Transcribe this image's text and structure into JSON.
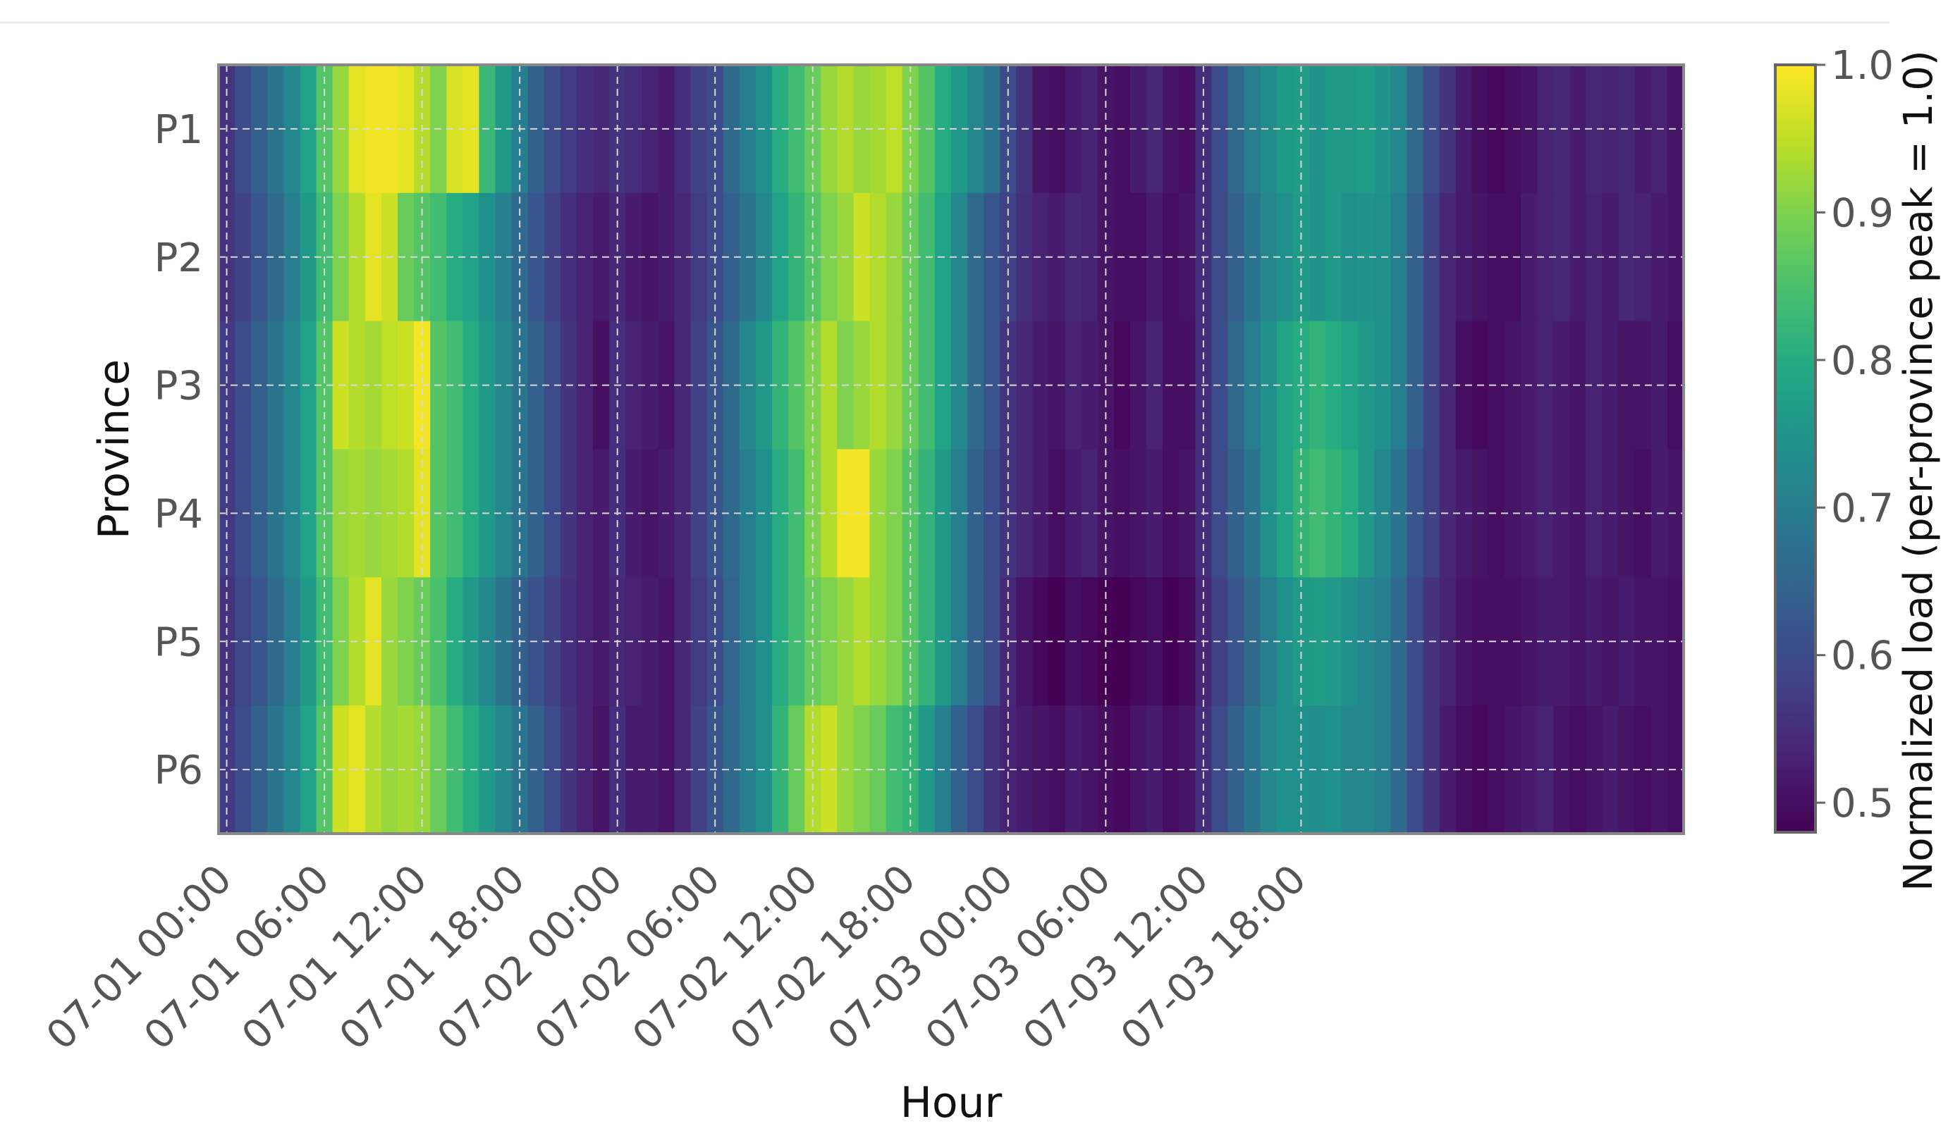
{
  "chart_data": {
    "type": "heatmap",
    "title": "",
    "xlabel": "Hour",
    "ylabel": "Province",
    "rows": [
      "P1",
      "P2",
      "P3",
      "P4",
      "P5",
      "P6"
    ],
    "x_start": "07-01 00:00",
    "x_step_hours": 1,
    "x_ticks": [
      "07-01 00:00",
      "07-01 06:00",
      "07-01 12:00",
      "07-01 18:00",
      "07-02 00:00",
      "07-02 06:00",
      "07-02 12:00",
      "07-02 18:00",
      "07-03 00:00",
      "07-03 06:00",
      "07-03 12:00",
      "07-03 18:00"
    ],
    "colorbar": {
      "label": "Normalized load (per-province peak = 1.0)",
      "range": [
        0.48,
        1.0
      ],
      "ticks": [
        "0.5",
        "0.6",
        "0.7",
        "0.8",
        "0.9",
        "1.0"
      ],
      "colormap": "viridis"
    },
    "grid": true,
    "values": [
      [
        0.56,
        0.6,
        0.64,
        0.68,
        0.72,
        0.78,
        0.86,
        0.92,
        0.98,
        0.99,
        0.99,
        0.98,
        0.94,
        0.9,
        0.97,
        0.98,
        0.83,
        0.76,
        0.7,
        0.64,
        0.6,
        0.57,
        0.55,
        0.54,
        0.56,
        0.55,
        0.53,
        0.52,
        0.55,
        0.58,
        0.6,
        0.66,
        0.7,
        0.74,
        0.8,
        0.84,
        0.88,
        0.92,
        0.94,
        0.92,
        0.93,
        0.95,
        0.9,
        0.86,
        0.8,
        0.76,
        0.72,
        0.68,
        0.6,
        0.56,
        0.51,
        0.5,
        0.52,
        0.53,
        0.51,
        0.5,
        0.52,
        0.54,
        0.51,
        0.5,
        0.55,
        0.6,
        0.66,
        0.7,
        0.73,
        0.76,
        0.77,
        0.75,
        0.76,
        0.76,
        0.77,
        0.75,
        0.72,
        0.66,
        0.6,
        0.56,
        0.52,
        0.5,
        0.49,
        0.5,
        0.51,
        0.53,
        0.54,
        0.52,
        0.54,
        0.53,
        0.54,
        0.52,
        0.53,
        0.51
      ],
      [
        0.56,
        0.58,
        0.62,
        0.66,
        0.7,
        0.76,
        0.84,
        0.9,
        0.94,
        0.98,
        0.96,
        0.88,
        0.86,
        0.84,
        0.8,
        0.78,
        0.74,
        0.7,
        0.66,
        0.62,
        0.58,
        0.55,
        0.53,
        0.52,
        0.54,
        0.52,
        0.51,
        0.52,
        0.54,
        0.57,
        0.6,
        0.64,
        0.68,
        0.72,
        0.78,
        0.82,
        0.86,
        0.9,
        0.92,
        0.96,
        0.94,
        0.92,
        0.88,
        0.84,
        0.78,
        0.72,
        0.66,
        0.62,
        0.58,
        0.55,
        0.53,
        0.52,
        0.54,
        0.53,
        0.51,
        0.5,
        0.5,
        0.52,
        0.5,
        0.51,
        0.55,
        0.6,
        0.64,
        0.68,
        0.72,
        0.74,
        0.76,
        0.75,
        0.76,
        0.74,
        0.75,
        0.74,
        0.7,
        0.64,
        0.58,
        0.54,
        0.52,
        0.51,
        0.5,
        0.5,
        0.52,
        0.53,
        0.54,
        0.52,
        0.53,
        0.52,
        0.54,
        0.53,
        0.52,
        0.51
      ],
      [
        0.57,
        0.6,
        0.64,
        0.68,
        0.72,
        0.78,
        0.86,
        0.96,
        0.94,
        0.93,
        0.95,
        0.96,
        0.99,
        0.86,
        0.84,
        0.8,
        0.76,
        0.72,
        0.68,
        0.64,
        0.6,
        0.56,
        0.53,
        0.5,
        0.55,
        0.53,
        0.52,
        0.51,
        0.54,
        0.58,
        0.62,
        0.66,
        0.72,
        0.76,
        0.82,
        0.86,
        0.9,
        0.94,
        0.9,
        0.92,
        0.94,
        0.92,
        0.88,
        0.84,
        0.78,
        0.72,
        0.66,
        0.62,
        0.56,
        0.54,
        0.52,
        0.51,
        0.53,
        0.52,
        0.51,
        0.49,
        0.51,
        0.53,
        0.5,
        0.5,
        0.55,
        0.6,
        0.66,
        0.7,
        0.74,
        0.78,
        0.8,
        0.82,
        0.8,
        0.78,
        0.76,
        0.74,
        0.7,
        0.64,
        0.58,
        0.54,
        0.5,
        0.49,
        0.5,
        0.51,
        0.52,
        0.53,
        0.52,
        0.51,
        0.53,
        0.52,
        0.51,
        0.51,
        0.52,
        0.5
      ],
      [
        0.57,
        0.6,
        0.64,
        0.68,
        0.72,
        0.78,
        0.86,
        0.92,
        0.93,
        0.92,
        0.93,
        0.94,
        0.98,
        0.86,
        0.84,
        0.8,
        0.76,
        0.72,
        0.68,
        0.64,
        0.6,
        0.56,
        0.53,
        0.52,
        0.55,
        0.52,
        0.51,
        0.52,
        0.54,
        0.58,
        0.62,
        0.66,
        0.7,
        0.74,
        0.8,
        0.84,
        0.9,
        0.94,
        0.99,
        0.99,
        0.92,
        0.9,
        0.86,
        0.82,
        0.76,
        0.7,
        0.64,
        0.6,
        0.56,
        0.54,
        0.52,
        0.5,
        0.52,
        0.53,
        0.51,
        0.5,
        0.51,
        0.52,
        0.5,
        0.51,
        0.55,
        0.6,
        0.64,
        0.68,
        0.74,
        0.78,
        0.82,
        0.84,
        0.82,
        0.8,
        0.76,
        0.72,
        0.68,
        0.62,
        0.58,
        0.54,
        0.52,
        0.51,
        0.5,
        0.51,
        0.52,
        0.53,
        0.52,
        0.51,
        0.53,
        0.52,
        0.51,
        0.5,
        0.52,
        0.51
      ],
      [
        0.56,
        0.59,
        0.62,
        0.66,
        0.7,
        0.76,
        0.84,
        0.9,
        0.94,
        0.98,
        0.92,
        0.9,
        0.88,
        0.85,
        0.8,
        0.76,
        0.72,
        0.68,
        0.64,
        0.61,
        0.58,
        0.55,
        0.53,
        0.52,
        0.54,
        0.53,
        0.52,
        0.51,
        0.54,
        0.57,
        0.6,
        0.65,
        0.7,
        0.74,
        0.8,
        0.84,
        0.88,
        0.9,
        0.92,
        0.94,
        0.92,
        0.9,
        0.86,
        0.82,
        0.76,
        0.7,
        0.64,
        0.6,
        0.54,
        0.51,
        0.49,
        0.48,
        0.5,
        0.49,
        0.48,
        0.48,
        0.49,
        0.5,
        0.48,
        0.49,
        0.54,
        0.58,
        0.62,
        0.66,
        0.7,
        0.74,
        0.76,
        0.77,
        0.76,
        0.74,
        0.72,
        0.7,
        0.66,
        0.6,
        0.56,
        0.53,
        0.51,
        0.5,
        0.5,
        0.5,
        0.51,
        0.52,
        0.52,
        0.51,
        0.52,
        0.51,
        0.52,
        0.51,
        0.51,
        0.5
      ],
      [
        0.57,
        0.6,
        0.64,
        0.68,
        0.72,
        0.78,
        0.86,
        0.96,
        0.98,
        0.94,
        0.92,
        0.93,
        0.92,
        0.88,
        0.84,
        0.8,
        0.76,
        0.72,
        0.68,
        0.64,
        0.6,
        0.56,
        0.53,
        0.51,
        0.55,
        0.52,
        0.52,
        0.51,
        0.54,
        0.58,
        0.62,
        0.66,
        0.7,
        0.74,
        0.82,
        0.88,
        0.94,
        0.96,
        0.92,
        0.9,
        0.88,
        0.84,
        0.82,
        0.76,
        0.7,
        0.64,
        0.6,
        0.56,
        0.53,
        0.52,
        0.51,
        0.5,
        0.52,
        0.51,
        0.5,
        0.49,
        0.51,
        0.52,
        0.5,
        0.51,
        0.55,
        0.6,
        0.64,
        0.68,
        0.72,
        0.74,
        0.74,
        0.73,
        0.74,
        0.72,
        0.72,
        0.7,
        0.66,
        0.6,
        0.56,
        0.52,
        0.5,
        0.49,
        0.5,
        0.51,
        0.52,
        0.53,
        0.51,
        0.5,
        0.51,
        0.52,
        0.51,
        0.5,
        0.51,
        0.5
      ]
    ]
  }
}
